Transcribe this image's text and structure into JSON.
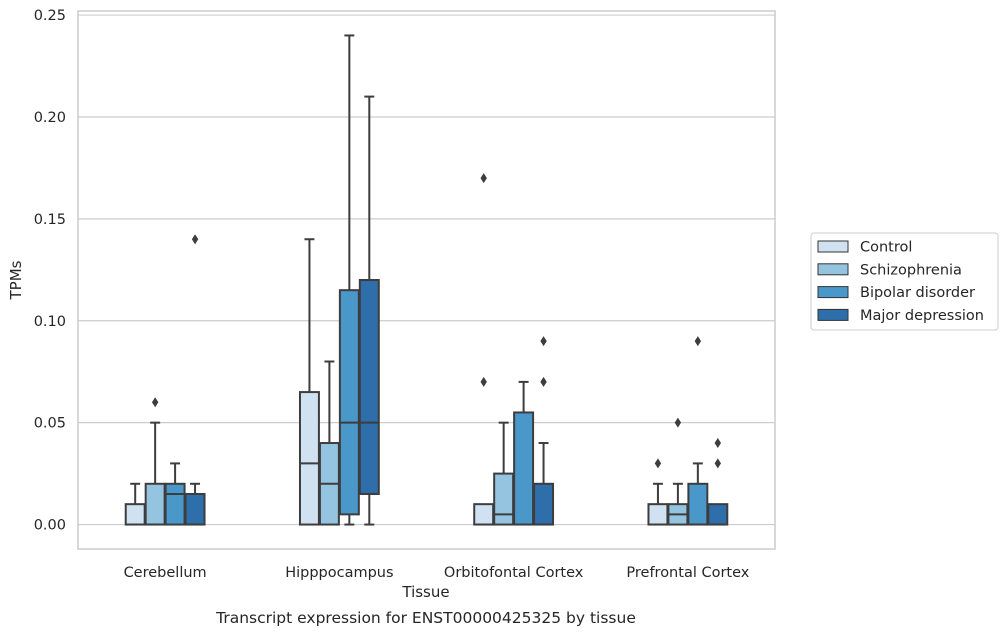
{
  "chart_data": {
    "type": "boxplot",
    "title": "",
    "caption": "Transcript expression for ENST00000425325 by tissue",
    "xlabel": "Tissue",
    "ylabel": "TPMs",
    "ylim": [
      -0.012,
      0.252
    ],
    "yticks": [
      "0.00",
      "0.05",
      "0.10",
      "0.15",
      "0.20",
      "0.25"
    ],
    "ytick_values": [
      0,
      0.05,
      0.1,
      0.15,
      0.2,
      0.25
    ],
    "grid": "horizontal",
    "legend_position": "right",
    "categories": [
      "Cerebellum",
      "Hipppocampus",
      "Orbitofontal Cortex",
      "Prefrontal Cortex"
    ],
    "series": [
      {
        "name": "Control",
        "color": "#d0e1f2",
        "boxes": [
          {
            "q1": 0.0,
            "median": 0.0,
            "q3": 0.01,
            "whisker_low": 0.0,
            "whisker_high": 0.02,
            "outliers": []
          },
          {
            "q1": 0.0,
            "median": 0.03,
            "q3": 0.065,
            "whisker_low": 0.0,
            "whisker_high": 0.14,
            "outliers": []
          },
          {
            "q1": 0.0,
            "median": 0.0,
            "q3": 0.01,
            "whisker_low": 0.0,
            "whisker_high": 0.01,
            "outliers": [
              0.07,
              0.17
            ]
          },
          {
            "q1": 0.0,
            "median": 0.0,
            "q3": 0.01,
            "whisker_low": 0.0,
            "whisker_high": 0.02,
            "outliers": [
              0.03
            ]
          }
        ]
      },
      {
        "name": "Schizophrenia",
        "color": "#94c4df",
        "boxes": [
          {
            "q1": 0.0,
            "median": 0.0,
            "q3": 0.02,
            "whisker_low": 0.0,
            "whisker_high": 0.05,
            "outliers": [
              0.06
            ]
          },
          {
            "q1": 0.0,
            "median": 0.02,
            "q3": 0.04,
            "whisker_low": 0.0,
            "whisker_high": 0.08,
            "outliers": []
          },
          {
            "q1": 0.0,
            "median": 0.005,
            "q3": 0.025,
            "whisker_low": 0.0,
            "whisker_high": 0.05,
            "outliers": []
          },
          {
            "q1": 0.0,
            "median": 0.005,
            "q3": 0.01,
            "whisker_low": 0.0,
            "whisker_high": 0.02,
            "outliers": [
              0.05
            ]
          }
        ]
      },
      {
        "name": "Bipolar disorder",
        "color": "#4a98c9",
        "boxes": [
          {
            "q1": 0.0,
            "median": 0.015,
            "q3": 0.02,
            "whisker_low": 0.0,
            "whisker_high": 0.03,
            "outliers": []
          },
          {
            "q1": 0.005,
            "median": 0.05,
            "q3": 0.115,
            "whisker_low": 0.0,
            "whisker_high": 0.24,
            "outliers": []
          },
          {
            "q1": 0.0,
            "median": 0.0,
            "q3": 0.055,
            "whisker_low": 0.0,
            "whisker_high": 0.07,
            "outliers": []
          },
          {
            "q1": 0.0,
            "median": 0.0,
            "q3": 0.02,
            "whisker_low": 0.0,
            "whisker_high": 0.03,
            "outliers": [
              0.09
            ]
          }
        ]
      },
      {
        "name": "Major depression",
        "color": "#2e6fab",
        "boxes": [
          {
            "q1": 0.0,
            "median": 0.0,
            "q3": 0.015,
            "whisker_low": 0.0,
            "whisker_high": 0.02,
            "outliers": [
              0.14
            ]
          },
          {
            "q1": 0.015,
            "median": 0.05,
            "q3": 0.12,
            "whisker_low": 0.0,
            "whisker_high": 0.21,
            "outliers": []
          },
          {
            "q1": 0.0,
            "median": 0.0,
            "q3": 0.02,
            "whisker_low": 0.0,
            "whisker_high": 0.04,
            "outliers": [
              0.07,
              0.09
            ]
          },
          {
            "q1": 0.0,
            "median": 0.0,
            "q3": 0.01,
            "whisker_low": 0.0,
            "whisker_high": 0.01,
            "outliers": [
              0.03,
              0.04
            ]
          }
        ]
      }
    ]
  }
}
